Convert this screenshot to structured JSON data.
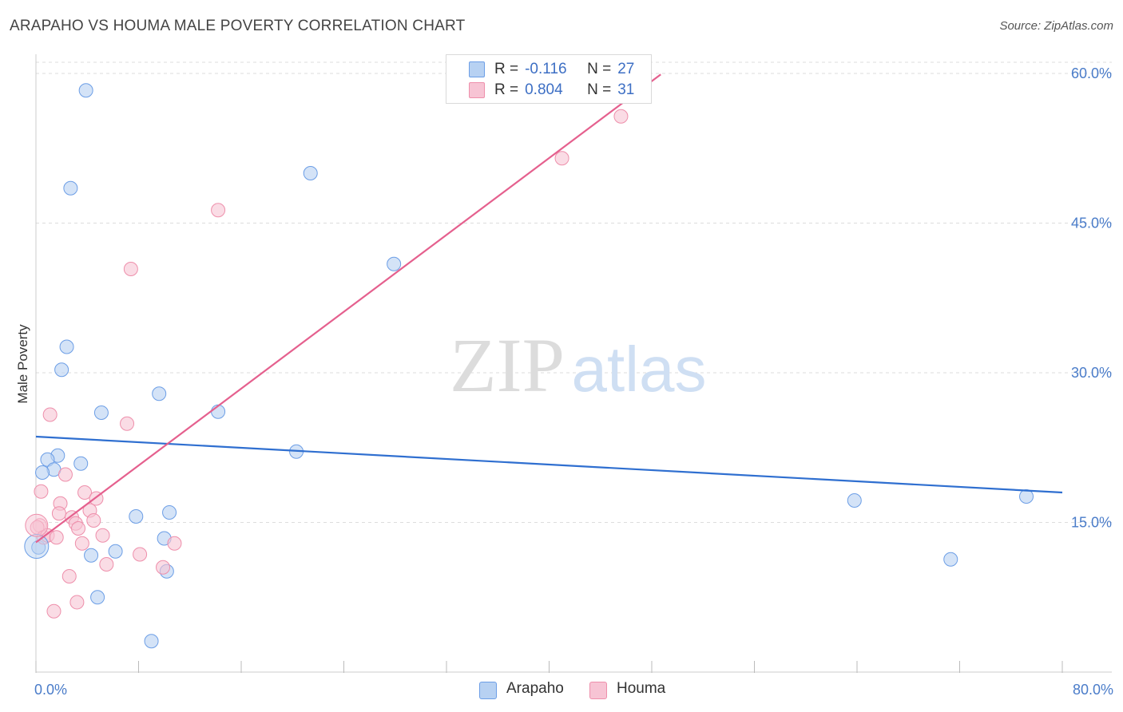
{
  "chart_data": {
    "type": "scatter",
    "title": "ARAPAHO VS HOUMA MALE POVERTY CORRELATION CHART",
    "source": "Source: ZipAtlas.com",
    "ylabel": "Male Poverty",
    "xlim": [
      0,
      80
    ],
    "ylim": [
      0,
      60
    ],
    "x_tick_labels": [
      "0.0%",
      "80.0%"
    ],
    "y_ticks": [
      15,
      30,
      45,
      60
    ],
    "y_tick_labels": [
      "15.0%",
      "30.0%",
      "45.0%",
      "60.0%"
    ],
    "watermark": {
      "zip": "ZIP",
      "atlas": "atlas"
    },
    "legend": [
      {
        "r_label": "R =",
        "r_value": "-0.116",
        "n_label": "N =",
        "n_value": "27"
      },
      {
        "r_label": "R =",
        "r_value": "0.804",
        "n_label": "N =",
        "n_value": "31"
      }
    ],
    "series": [
      {
        "name": "Arapaho",
        "color": "#6c9ee6",
        "fill": "#b7d1f2",
        "r": -0.116,
        "n": 27,
        "trend": {
          "x": [
            0,
            80
          ],
          "y": [
            23.6,
            18.0
          ]
        },
        "points": [
          {
            "x": 3.9,
            "y": 58.3
          },
          {
            "x": 2.7,
            "y": 48.5
          },
          {
            "x": 21.4,
            "y": 50.0
          },
          {
            "x": 27.9,
            "y": 40.9
          },
          {
            "x": 2.4,
            "y": 32.6
          },
          {
            "x": 2.0,
            "y": 30.3
          },
          {
            "x": 9.6,
            "y": 27.9
          },
          {
            "x": 5.1,
            "y": 26.0
          },
          {
            "x": 14.2,
            "y": 26.1
          },
          {
            "x": 20.3,
            "y": 22.1
          },
          {
            "x": 1.7,
            "y": 21.7
          },
          {
            "x": 0.9,
            "y": 21.3
          },
          {
            "x": 3.5,
            "y": 20.9
          },
          {
            "x": 1.4,
            "y": 20.3
          },
          {
            "x": 0.5,
            "y": 20.0
          },
          {
            "x": 63.8,
            "y": 17.2
          },
          {
            "x": 77.2,
            "y": 17.6
          },
          {
            "x": 10.4,
            "y": 16.0
          },
          {
            "x": 7.8,
            "y": 15.6
          },
          {
            "x": 10.0,
            "y": 13.4
          },
          {
            "x": 0.2,
            "y": 12.5
          },
          {
            "x": 6.2,
            "y": 12.1
          },
          {
            "x": 4.3,
            "y": 11.7
          },
          {
            "x": 10.2,
            "y": 10.1
          },
          {
            "x": 71.3,
            "y": 11.3
          },
          {
            "x": 4.8,
            "y": 7.5
          },
          {
            "x": 9.0,
            "y": 3.1
          }
        ]
      },
      {
        "name": "Houma",
        "color": "#ee8fab",
        "fill": "#f7c4d4",
        "r": 0.804,
        "n": 31,
        "trend": {
          "x": [
            0,
            48.7
          ],
          "y": [
            13.0,
            59.9
          ]
        },
        "points": [
          {
            "x": 45.6,
            "y": 55.7
          },
          {
            "x": 41.0,
            "y": 51.5
          },
          {
            "x": 14.2,
            "y": 46.3
          },
          {
            "x": 7.4,
            "y": 40.4
          },
          {
            "x": 1.1,
            "y": 25.8
          },
          {
            "x": 7.1,
            "y": 24.9
          },
          {
            "x": 2.3,
            "y": 19.8
          },
          {
            "x": 0.4,
            "y": 18.1
          },
          {
            "x": 3.8,
            "y": 18.0
          },
          {
            "x": 4.7,
            "y": 17.4
          },
          {
            "x": 1.9,
            "y": 16.9
          },
          {
            "x": 1.8,
            "y": 15.9
          },
          {
            "x": 4.2,
            "y": 16.2
          },
          {
            "x": 2.8,
            "y": 15.5
          },
          {
            "x": 4.5,
            "y": 15.2
          },
          {
            "x": 3.1,
            "y": 14.9
          },
          {
            "x": 3.3,
            "y": 14.4
          },
          {
            "x": 0.3,
            "y": 14.7
          },
          {
            "x": 0.1,
            "y": 14.5
          },
          {
            "x": 0.6,
            "y": 13.5
          },
          {
            "x": 0.9,
            "y": 13.7
          },
          {
            "x": 1.6,
            "y": 13.5
          },
          {
            "x": 5.2,
            "y": 13.7
          },
          {
            "x": 3.6,
            "y": 12.9
          },
          {
            "x": 10.8,
            "y": 12.9
          },
          {
            "x": 8.1,
            "y": 11.8
          },
          {
            "x": 5.5,
            "y": 10.8
          },
          {
            "x": 9.9,
            "y": 10.5
          },
          {
            "x": 2.6,
            "y": 9.6
          },
          {
            "x": 3.2,
            "y": 7.0
          },
          {
            "x": 1.4,
            "y": 6.1
          }
        ]
      }
    ]
  }
}
